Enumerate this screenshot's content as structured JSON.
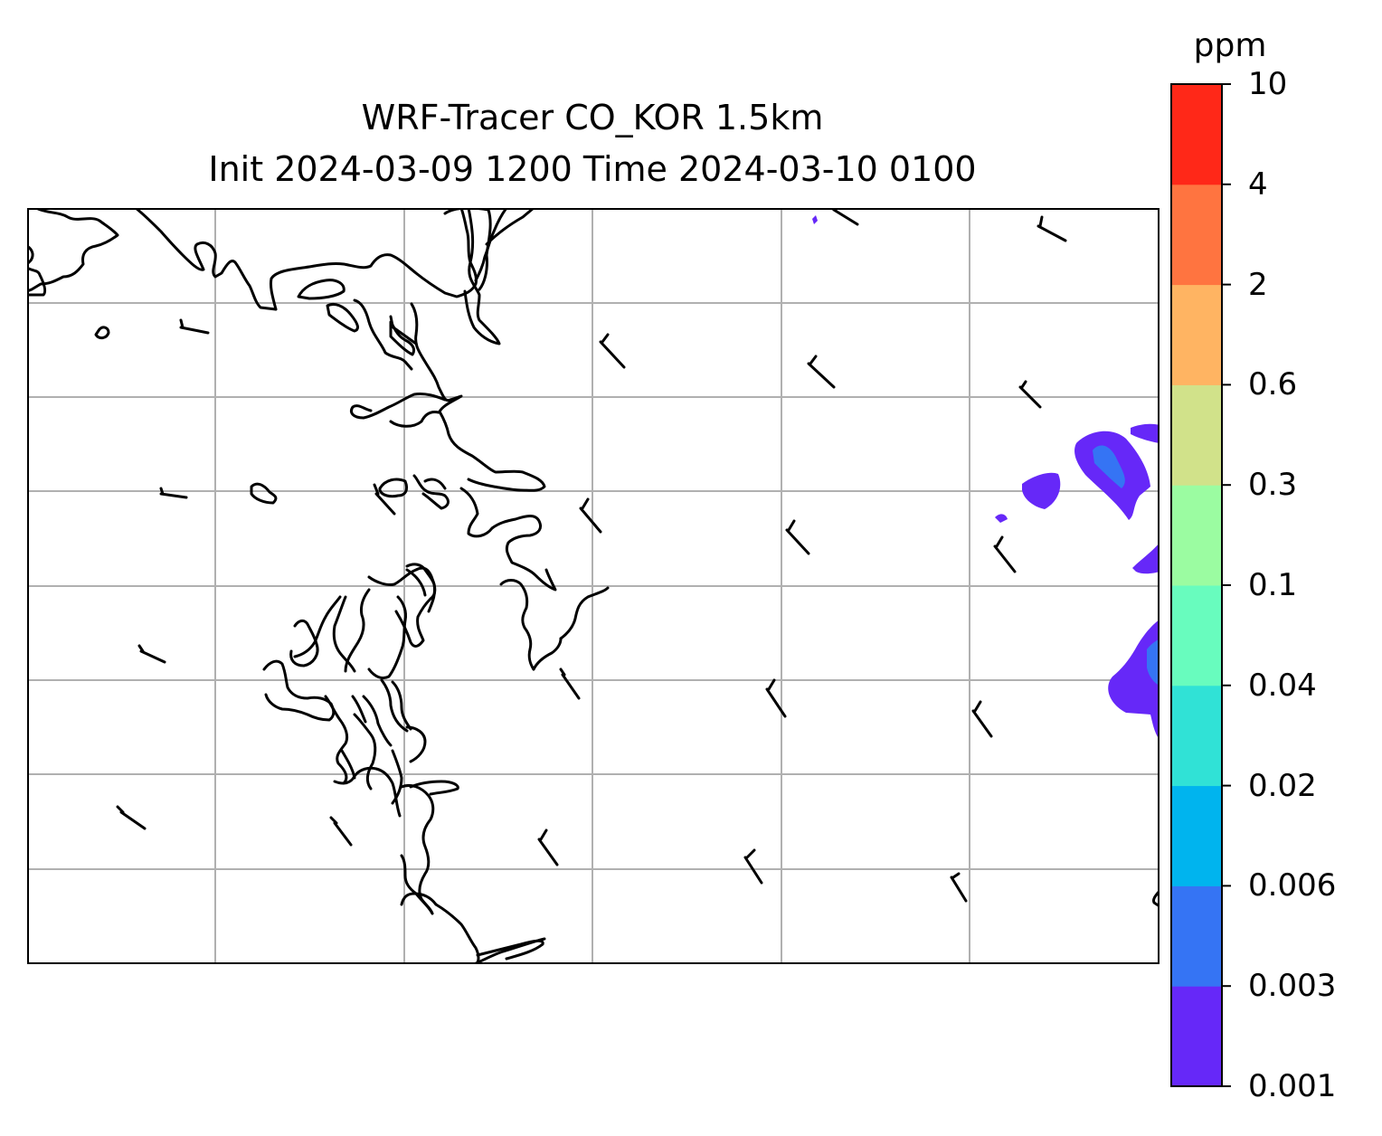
{
  "title": {
    "line1": "WRF-Tracer CO_KOR 1.5km",
    "line2": "Init 2024-03-09 1200 Time 2024-03-10 0100"
  },
  "colorbar": {
    "unit": "ppm",
    "levels": [
      "0.001",
      "0.003",
      "0.006",
      "0.02",
      "0.04",
      "0.1",
      "0.3",
      "0.6",
      "2",
      "4",
      "10"
    ],
    "colors": [
      "#6628f8",
      "#3574f4",
      "#00b4ee",
      "#30e2d6",
      "#68fcbe",
      "#9bfca1",
      "#d1e28a",
      "#ffb462",
      "#ff7440",
      "#ff2818"
    ]
  },
  "map": {
    "gridline_color": "#b0b0b0",
    "coastline_color": "#000000",
    "tracer_fill_colors": {
      "lowest": "#6628f8",
      "second": "#3574f4"
    }
  }
}
